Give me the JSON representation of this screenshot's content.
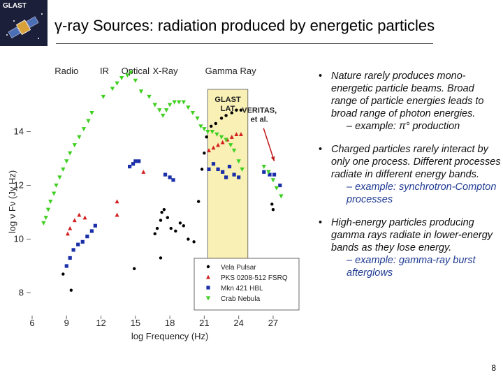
{
  "logo": {
    "text": "GLAST"
  },
  "title": "γ-ray Sources: radiation produced by energetic particles",
  "chart_data": {
    "type": "scatter",
    "title": "",
    "xlabel": "log Frequency (Hz)",
    "ylabel": "log ν Fν (Jy Hz)",
    "xlim": [
      6,
      29.5
    ],
    "ylim": [
      7,
      16.3
    ],
    "xticks": [
      6,
      9,
      12,
      15,
      18,
      21,
      24,
      27
    ],
    "yticks": [
      8,
      10,
      12,
      14
    ],
    "bands": [
      {
        "label": "Radio",
        "x": 9
      },
      {
        "label": "IR",
        "x": 12.3
      },
      {
        "label": "Optical",
        "x": 15
      },
      {
        "label": "X-Ray",
        "x": 17.6
      },
      {
        "label": "Gamma Ray",
        "x": 23.3
      }
    ],
    "highlight": {
      "x_range": [
        21.3,
        24.8
      ],
      "label": "GLAST LAT",
      "color": "#f8f0b4"
    },
    "annotation": {
      "label": "VERITAS, et al.",
      "x": 25.8,
      "y": 14.7,
      "arrow_to": [
        27.1,
        12.9
      ]
    },
    "series": [
      {
        "name": "Vela Pulsar",
        "color": "#000000",
        "marker": "circle",
        "points": [
          [
            8.7,
            8.7
          ],
          [
            9.4,
            8.1
          ],
          [
            14.9,
            8.9
          ],
          [
            17.2,
            9.3
          ],
          [
            16.7,
            10.2
          ],
          [
            16.9,
            10.4
          ],
          [
            17.2,
            10.7
          ],
          [
            17.3,
            11.0
          ],
          [
            17.5,
            11.1
          ],
          [
            17.8,
            10.8
          ],
          [
            18.1,
            10.4
          ],
          [
            18.5,
            10.3
          ],
          [
            18.9,
            10.6
          ],
          [
            19.2,
            10.5
          ],
          [
            19.6,
            10.0
          ],
          [
            20.1,
            9.9
          ],
          [
            20.5,
            11.4
          ],
          [
            20.8,
            12.6
          ],
          [
            21.0,
            13.2
          ],
          [
            21.2,
            13.8
          ],
          [
            21.6,
            14.2
          ],
          [
            22.0,
            14.3
          ],
          [
            22.5,
            14.5
          ],
          [
            22.9,
            14.6
          ],
          [
            23.4,
            14.7
          ],
          [
            23.8,
            14.8
          ],
          [
            24.2,
            14.8
          ],
          [
            26.9,
            11.3
          ],
          [
            27.0,
            11.1
          ]
        ]
      },
      {
        "name": "PKS 0208-512 FSRQ",
        "color": "#d42020",
        "marker": "triangle-up",
        "points": [
          [
            9.1,
            10.2
          ],
          [
            9.3,
            10.4
          ],
          [
            9.7,
            10.7
          ],
          [
            10.1,
            10.9
          ],
          [
            10.6,
            10.8
          ],
          [
            13.4,
            10.9
          ],
          [
            13.4,
            11.4
          ],
          [
            15.7,
            12.5
          ],
          [
            21.4,
            13.3
          ],
          [
            21.8,
            13.4
          ],
          [
            22.2,
            13.5
          ],
          [
            22.6,
            13.6
          ],
          [
            23.0,
            13.7
          ],
          [
            23.4,
            13.8
          ],
          [
            23.8,
            13.9
          ],
          [
            24.2,
            13.9
          ]
        ]
      },
      {
        "name": "Mkn 421 HBL",
        "color": "#1a2fa8",
        "marker": "square",
        "points": [
          [
            9.0,
            9.0
          ],
          [
            9.3,
            9.3
          ],
          [
            9.6,
            9.6
          ],
          [
            10.0,
            9.8
          ],
          [
            10.4,
            9.9
          ],
          [
            10.8,
            10.1
          ],
          [
            11.2,
            10.3
          ],
          [
            11.5,
            10.5
          ],
          [
            14.5,
            12.7
          ],
          [
            14.8,
            12.8
          ],
          [
            15.0,
            12.9
          ],
          [
            15.3,
            12.9
          ],
          [
            17.6,
            12.4
          ],
          [
            18.0,
            12.3
          ],
          [
            18.3,
            12.2
          ],
          [
            21.4,
            12.6
          ],
          [
            21.8,
            12.8
          ],
          [
            22.2,
            12.6
          ],
          [
            22.6,
            12.5
          ],
          [
            22.9,
            12.3
          ],
          [
            23.2,
            12.7
          ],
          [
            23.6,
            12.4
          ],
          [
            24.0,
            12.3
          ],
          [
            26.2,
            12.5
          ],
          [
            26.7,
            12.4
          ],
          [
            27.1,
            12.4
          ],
          [
            27.6,
            12.0
          ]
        ]
      },
      {
        "name": "Crab Nebula",
        "color": "#3fcf20",
        "marker": "triangle-down",
        "points": [
          [
            7.0,
            10.6
          ],
          [
            7.2,
            10.8
          ],
          [
            7.4,
            11.1
          ],
          [
            7.6,
            11.4
          ],
          [
            7.9,
            11.7
          ],
          [
            8.1,
            12.0
          ],
          [
            8.4,
            12.3
          ],
          [
            8.7,
            12.6
          ],
          [
            9.0,
            12.9
          ],
          [
            9.3,
            13.2
          ],
          [
            9.7,
            13.5
          ],
          [
            10.1,
            13.8
          ],
          [
            10.5,
            14.1
          ],
          [
            10.9,
            14.4
          ],
          [
            11.2,
            14.7
          ],
          [
            12.2,
            15.3
          ],
          [
            13.0,
            15.6
          ],
          [
            13.4,
            15.8
          ],
          [
            13.8,
            16.0
          ],
          [
            14.3,
            16.1
          ],
          [
            14.6,
            16.2
          ],
          [
            15.0,
            15.9
          ],
          [
            15.5,
            15.5
          ],
          [
            16.2,
            15.3
          ],
          [
            16.7,
            15.0
          ],
          [
            17.1,
            14.8
          ],
          [
            17.4,
            14.6
          ],
          [
            17.7,
            14.8
          ],
          [
            18.0,
            15.0
          ],
          [
            18.4,
            15.1
          ],
          [
            18.8,
            15.1
          ],
          [
            19.2,
            15.1
          ],
          [
            19.6,
            14.9
          ],
          [
            20.0,
            14.7
          ],
          [
            20.4,
            14.5
          ],
          [
            20.7,
            14.2
          ],
          [
            21.0,
            14.1
          ],
          [
            21.3,
            14.0
          ],
          [
            21.7,
            14.0
          ],
          [
            22.1,
            13.9
          ],
          [
            22.5,
            13.8
          ],
          [
            22.9,
            13.7
          ],
          [
            23.3,
            13.5
          ],
          [
            23.6,
            13.3
          ],
          [
            24.0,
            12.9
          ],
          [
            24.3,
            12.6
          ],
          [
            26.2,
            12.7
          ],
          [
            26.6,
            12.5
          ],
          [
            27.0,
            12.2
          ],
          [
            27.3,
            11.9
          ],
          [
            27.7,
            11.6
          ]
        ]
      }
    ]
  },
  "bullets": [
    {
      "text": "Nature rarely produces mono-energetic particle beams. Broad range of particle energies leads to broad range of photon energies.",
      "sub": "– example: π° production"
    },
    {
      "text": "Charged particles rarely interact by only one process. Different processes radiate in different energy bands.",
      "sub": "– example: synchrotron-Compton processes"
    },
    {
      "text": "High-energy particles producing gamma rays radiate in lower-energy bands as they lose energy.",
      "sub": "– example: gamma-ray burst afterglows"
    }
  ],
  "page_number": "8"
}
